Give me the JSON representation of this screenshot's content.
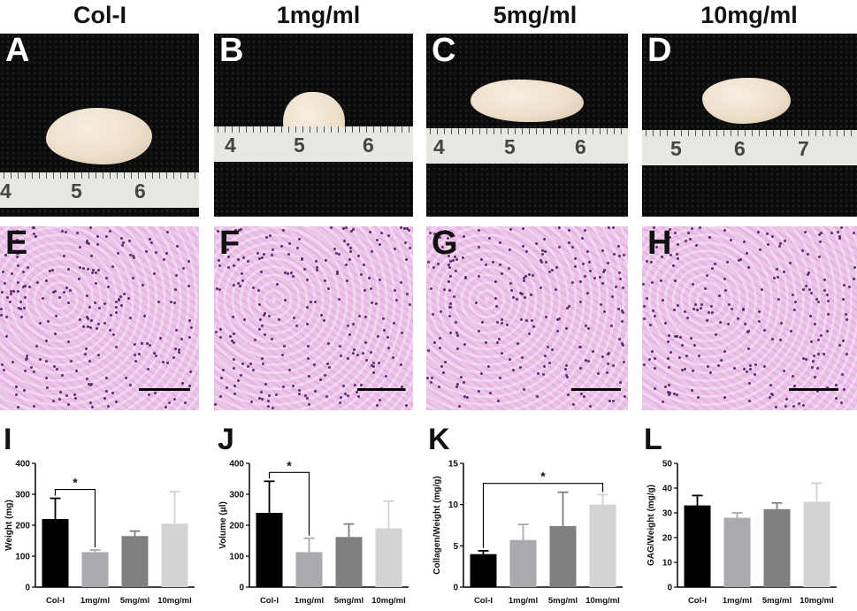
{
  "columns": [
    "Col-I",
    "1mg/ml",
    "5mg/ml",
    "10mg/ml"
  ],
  "photo_panels": [
    {
      "letter": "A",
      "ruler": [
        "4",
        "5",
        "6"
      ]
    },
    {
      "letter": "B",
      "ruler": [
        "4",
        "5",
        "6"
      ]
    },
    {
      "letter": "C",
      "ruler": [
        "4",
        "5",
        "6"
      ]
    },
    {
      "letter": "D",
      "ruler": [
        "5",
        "6",
        "7"
      ]
    }
  ],
  "histology_panels": [
    {
      "letter": "E"
    },
    {
      "letter": "F"
    },
    {
      "letter": "G"
    },
    {
      "letter": "H"
    }
  ],
  "colors": {
    "Col-I": "#000000",
    "1mg/ml": "#a9a9b0",
    "5mg/ml": "#7f7f7f",
    "10mg/ml": "#d3d3d3"
  },
  "chart_data": [
    {
      "letter": "I",
      "type": "bar",
      "categories": [
        "Col-I",
        "1mg/ml",
        "5mg/ml",
        "10mg/ml"
      ],
      "values": [
        220,
        113,
        165,
        205
      ],
      "errors": [
        67,
        7,
        16,
        103
      ],
      "ylabel": "Weight (mg)",
      "ylim": [
        0,
        400
      ],
      "yticks": [
        "0",
        "100",
        "200",
        "300",
        "400"
      ],
      "significance": {
        "from": 0,
        "to": 1,
        "label": "*"
      }
    },
    {
      "letter": "J",
      "type": "bar",
      "categories": [
        "Col-I",
        "1mg/ml",
        "5mg/ml",
        "10mg/ml"
      ],
      "values": [
        240,
        113,
        162,
        190
      ],
      "errors": [
        102,
        45,
        42,
        88
      ],
      "ylabel": "Volume (μl)",
      "ylim": [
        0,
        400
      ],
      "yticks": [
        "0",
        "100",
        "200",
        "300",
        "400"
      ],
      "significance": {
        "from": 0,
        "to": 1,
        "label": "*"
      }
    },
    {
      "letter": "K",
      "type": "bar",
      "categories": [
        "Col-I",
        "1mg/ml",
        "5mg/ml",
        "10mg/ml"
      ],
      "values": [
        4.0,
        5.7,
        7.4,
        10.0
      ],
      "errors": [
        0.4,
        1.9,
        4.1,
        1.2
      ],
      "ylabel": "Collagen/Weight (mg/g)",
      "ylim": [
        0,
        15
      ],
      "yticks": [
        "0",
        "5",
        "10",
        "15"
      ],
      "significance": {
        "from": 0,
        "to": 3,
        "label": "*"
      }
    },
    {
      "letter": "L",
      "type": "bar",
      "categories": [
        "Col-I",
        "1mg/ml",
        "5mg/ml",
        "10mg/ml"
      ],
      "values": [
        33,
        28,
        31.5,
        34.5
      ],
      "errors": [
        4,
        2,
        2.5,
        7.5
      ],
      "ylabel": "GAG/Weight (mg/g)",
      "ylim": [
        0,
        50
      ],
      "yticks": [
        "0",
        "10",
        "20",
        "30",
        "40",
        "50"
      ]
    }
  ]
}
